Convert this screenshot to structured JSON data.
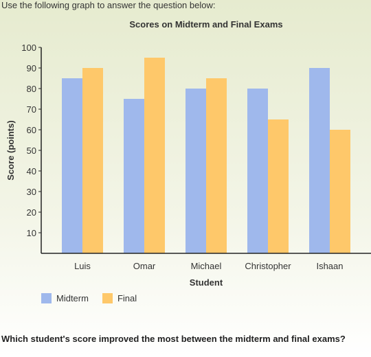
{
  "intro_text": "Use the following graph to answer the question below:",
  "question_text": "Which student's score improved the most between the midterm and final exams?",
  "colors": {
    "midterm": "#9fb8ec",
    "final": "#fec86a",
    "axis": "#222222"
  },
  "chart_data": {
    "type": "bar",
    "title": "Scores on Midterm and Final Exams",
    "xlabel": "Student",
    "ylabel": "Score (points)",
    "categories": [
      "Luis",
      "Omar",
      "Michael",
      "Christopher",
      "Ishaan"
    ],
    "series": [
      {
        "name": "Midterm",
        "values": [
          85,
          75,
          80,
          80,
          90
        ]
      },
      {
        "name": "Final",
        "values": [
          90,
          95,
          85,
          65,
          60
        ]
      }
    ],
    "ylim": [
      0,
      100
    ],
    "yticks": [
      10,
      20,
      30,
      40,
      50,
      60,
      70,
      80,
      90,
      100
    ],
    "grid": false,
    "legend_position": "bottom-left"
  }
}
